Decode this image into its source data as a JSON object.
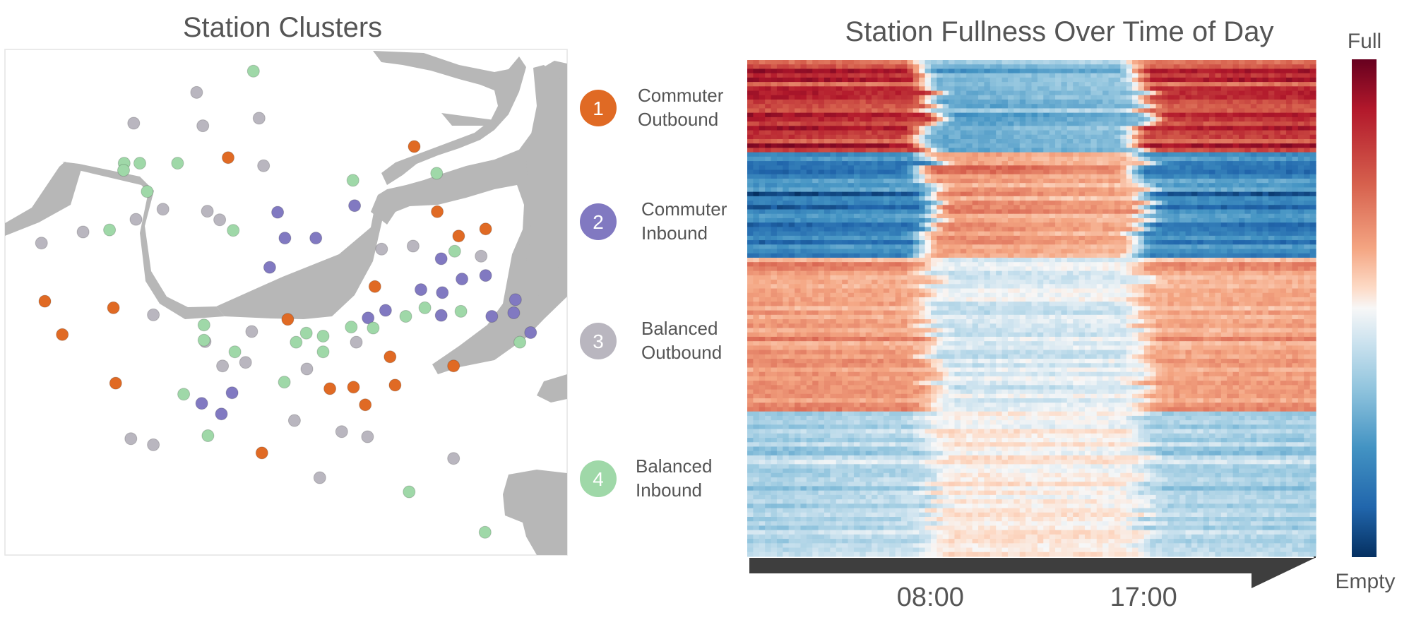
{
  "colors": {
    "cluster_1": "#e06a24",
    "cluster_2": "#8179c1",
    "cluster_3": "#b9b6bf",
    "cluster_4": "#9fd8a8",
    "land": "#b7b7b7",
    "time_bar": "#3e3e3e",
    "full": "#67001f",
    "empty": "#053061",
    "neutral": "#f7f7f7"
  },
  "chart_data": [
    {
      "type": "scatter",
      "title": "Station Clusters",
      "series": [
        {
          "cluster": 1,
          "color": "#e06a24",
          "points": [
            [
              0.728,
              0.192
            ],
            [
              0.397,
              0.214
            ],
            [
              0.769,
              0.321
            ],
            [
              0.807,
              0.369
            ],
            [
              0.855,
              0.355
            ],
            [
              0.071,
              0.498
            ],
            [
              0.193,
              0.511
            ],
            [
              0.102,
              0.564
            ],
            [
              0.503,
              0.534
            ],
            [
              0.658,
              0.469
            ],
            [
              0.685,
              0.608
            ],
            [
              0.578,
              0.671
            ],
            [
              0.62,
              0.668
            ],
            [
              0.694,
              0.664
            ],
            [
              0.641,
              0.703
            ],
            [
              0.798,
              0.626
            ],
            [
              0.197,
              0.66
            ],
            [
              0.457,
              0.798
            ]
          ]
        },
        {
          "cluster": 2,
          "color": "#8179c1",
          "points": [
            [
              0.485,
              0.322
            ],
            [
              0.622,
              0.309
            ],
            [
              0.498,
              0.373
            ],
            [
              0.553,
              0.373
            ],
            [
              0.471,
              0.431
            ],
            [
              0.776,
              0.414
            ],
            [
              0.813,
              0.454
            ],
            [
              0.855,
              0.447
            ],
            [
              0.74,
              0.475
            ],
            [
              0.778,
              0.481
            ],
            [
              0.908,
              0.495
            ],
            [
              0.905,
              0.521
            ],
            [
              0.935,
              0.56
            ],
            [
              0.866,
              0.528
            ],
            [
              0.776,
              0.526
            ],
            [
              0.677,
              0.516
            ],
            [
              0.646,
              0.531
            ],
            [
              0.404,
              0.679
            ],
            [
              0.35,
              0.7
            ],
            [
              0.385,
              0.721
            ]
          ]
        },
        {
          "cluster": 3,
          "color": "#b9b6bf",
          "points": [
            [
              0.341,
              0.085
            ],
            [
              0.229,
              0.146
            ],
            [
              0.352,
              0.151
            ],
            [
              0.452,
              0.136
            ],
            [
              0.46,
              0.23
            ],
            [
              0.281,
              0.316
            ],
            [
              0.233,
              0.336
            ],
            [
              0.36,
              0.32
            ],
            [
              0.382,
              0.337
            ],
            [
              0.065,
              0.383
            ],
            [
              0.139,
              0.361
            ],
            [
              0.67,
              0.395
            ],
            [
              0.726,
              0.389
            ],
            [
              0.847,
              0.409
            ],
            [
              0.264,
              0.525
            ],
            [
              0.439,
              0.558
            ],
            [
              0.356,
              0.578
            ],
            [
              0.625,
              0.579
            ],
            [
              0.387,
              0.626
            ],
            [
              0.428,
              0.619
            ],
            [
              0.537,
              0.632
            ],
            [
              0.515,
              0.734
            ],
            [
              0.599,
              0.756
            ],
            [
              0.645,
              0.766
            ],
            [
              0.224,
              0.77
            ],
            [
              0.264,
              0.782
            ],
            [
              0.56,
              0.847
            ],
            [
              0.798,
              0.809
            ]
          ]
        },
        {
          "cluster": 4,
          "color": "#9fd8a8",
          "points": [
            [
              0.442,
              0.043
            ],
            [
              0.212,
              0.225
            ],
            [
              0.24,
              0.225
            ],
            [
              0.307,
              0.225
            ],
            [
              0.211,
              0.239
            ],
            [
              0.619,
              0.259
            ],
            [
              0.768,
              0.245
            ],
            [
              0.253,
              0.281
            ],
            [
              0.186,
              0.357
            ],
            [
              0.406,
              0.358
            ],
            [
              0.354,
              0.545
            ],
            [
              0.354,
              0.575
            ],
            [
              0.409,
              0.598
            ],
            [
              0.518,
              0.579
            ],
            [
              0.536,
              0.561
            ],
            [
              0.566,
              0.567
            ],
            [
              0.566,
              0.598
            ],
            [
              0.616,
              0.549
            ],
            [
              0.655,
              0.551
            ],
            [
              0.713,
              0.528
            ],
            [
              0.747,
              0.511
            ],
            [
              0.811,
              0.518
            ],
            [
              0.8,
              0.399
            ],
            [
              0.916,
              0.579
            ],
            [
              0.318,
              0.682
            ],
            [
              0.497,
              0.658
            ],
            [
              0.361,
              0.764
            ],
            [
              0.719,
              0.875
            ],
            [
              0.854,
              0.955
            ]
          ]
        }
      ]
    },
    {
      "type": "heatmap",
      "title": "Station Fullness Over Time of Day",
      "x_ticks": [
        "08:00",
        "17:00"
      ],
      "colorbar_labels": {
        "top": "Full",
        "bottom": "Empty"
      },
      "groups": [
        {
          "label_num": "1",
          "label_line1": "Commuter",
          "label_line2": "Outbound",
          "color": "#e06a24",
          "rows": 21,
          "profile": [
            0.78,
            0.72,
            -0.45,
            -0.35,
            0.7,
            0.75
          ]
        },
        {
          "label_num": "2",
          "label_line1": "Commuter",
          "label_line2": "Inbound",
          "color": "#8179c1",
          "rows": 24,
          "profile": [
            -0.78,
            -0.72,
            0.45,
            0.35,
            -0.7,
            -0.75
          ]
        },
        {
          "label_num": "3",
          "label_line1": "Balanced",
          "label_line2": "Outbound",
          "color": "#b9b6bf",
          "rows": 35,
          "profile": [
            0.38,
            0.35,
            -0.12,
            -0.08,
            0.32,
            0.35
          ]
        },
        {
          "label_num": "4",
          "label_line1": "Balanced",
          "label_line2": "Inbound",
          "color": "#9fd8a8",
          "rows": 33,
          "profile": [
            -0.28,
            -0.22,
            0.05,
            0.02,
            -0.25,
            -0.28
          ]
        }
      ],
      "profile_hours": [
        0,
        7,
        8.5,
        16,
        17.5,
        24
      ]
    }
  ]
}
